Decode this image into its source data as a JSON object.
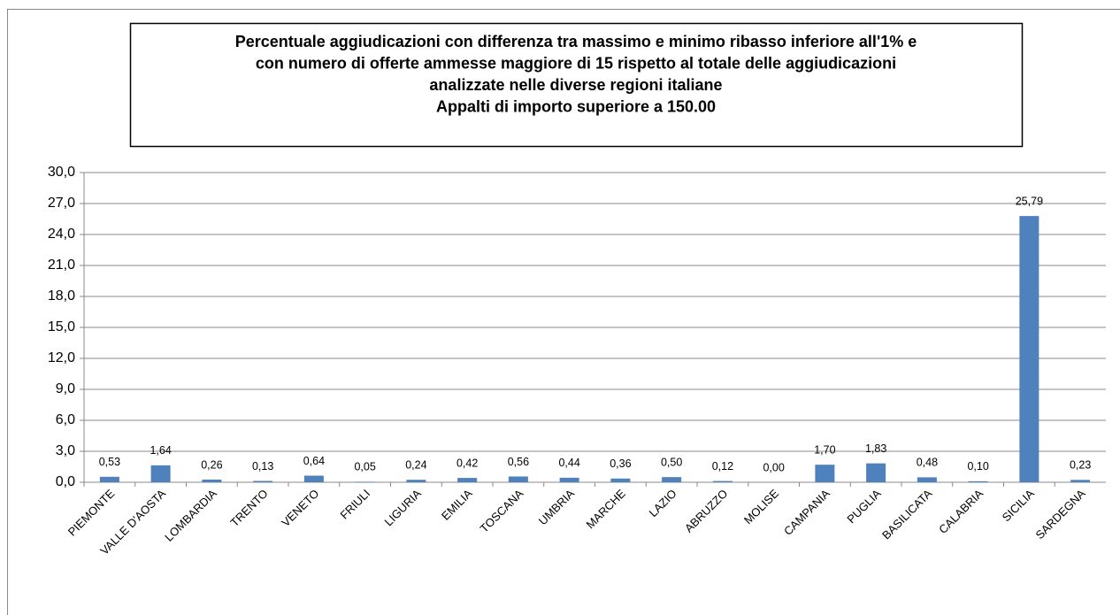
{
  "chart_data": {
    "type": "bar",
    "title": [
      "Percentuale aggiudicazioni con differenza tra massimo e minimo ribasso inferiore all'1% e",
      "con numero di offerte ammesse maggiore di 15 rispetto al totale delle aggiudicazioni",
      "analizzate nelle diverse regioni italiane",
      "Appalti di importo superiore a 150.00"
    ],
    "categories": [
      "PIEMONTE",
      "VALLE D'AOSTA",
      "LOMBARDIA",
      "TRENTO",
      "VENETO",
      "FRIULI",
      "LIGURIA",
      "EMILIA",
      "TOSCANA",
      "UMBRIA",
      "MARCHE",
      "LAZIO",
      "ABRUZZO",
      "MOLISE",
      "CAMPANIA",
      "PUGLIA",
      "BASILICATA",
      "CALABRIA",
      "SICILIA",
      "SARDEGNA"
    ],
    "values": [
      0.53,
      1.64,
      0.26,
      0.13,
      0.64,
      0.05,
      0.24,
      0.42,
      0.56,
      0.44,
      0.36,
      0.5,
      0.12,
      0.0,
      1.7,
      1.83,
      0.48,
      0.1,
      25.79,
      0.23
    ],
    "value_labels": [
      "0,53",
      "1,64",
      "0,26",
      "0,13",
      "0,64",
      "0,05",
      "0,24",
      "0,42",
      "0,56",
      "0,44",
      "0,36",
      "0,50",
      "0,12",
      "0,00",
      "1,70",
      "1,83",
      "0,48",
      "0,10",
      "25,79",
      "0,23"
    ],
    "color": "#4f81bd",
    "ylim": [
      0,
      30
    ],
    "yticks": [
      {
        "value": 0,
        "label": "0,0"
      },
      {
        "value": 3,
        "label": "3,0"
      },
      {
        "value": 6,
        "label": "6,0"
      },
      {
        "value": 9,
        "label": "9,0"
      },
      {
        "value": 12,
        "label": "12,0"
      },
      {
        "value": 15,
        "label": "15,0"
      },
      {
        "value": 18,
        "label": "18,0"
      },
      {
        "value": 21,
        "label": "21,0"
      },
      {
        "value": 24,
        "label": "24,0"
      },
      {
        "value": 27,
        "label": "27,0"
      },
      {
        "value": 30,
        "label": "30,0"
      }
    ],
    "grid": true
  }
}
